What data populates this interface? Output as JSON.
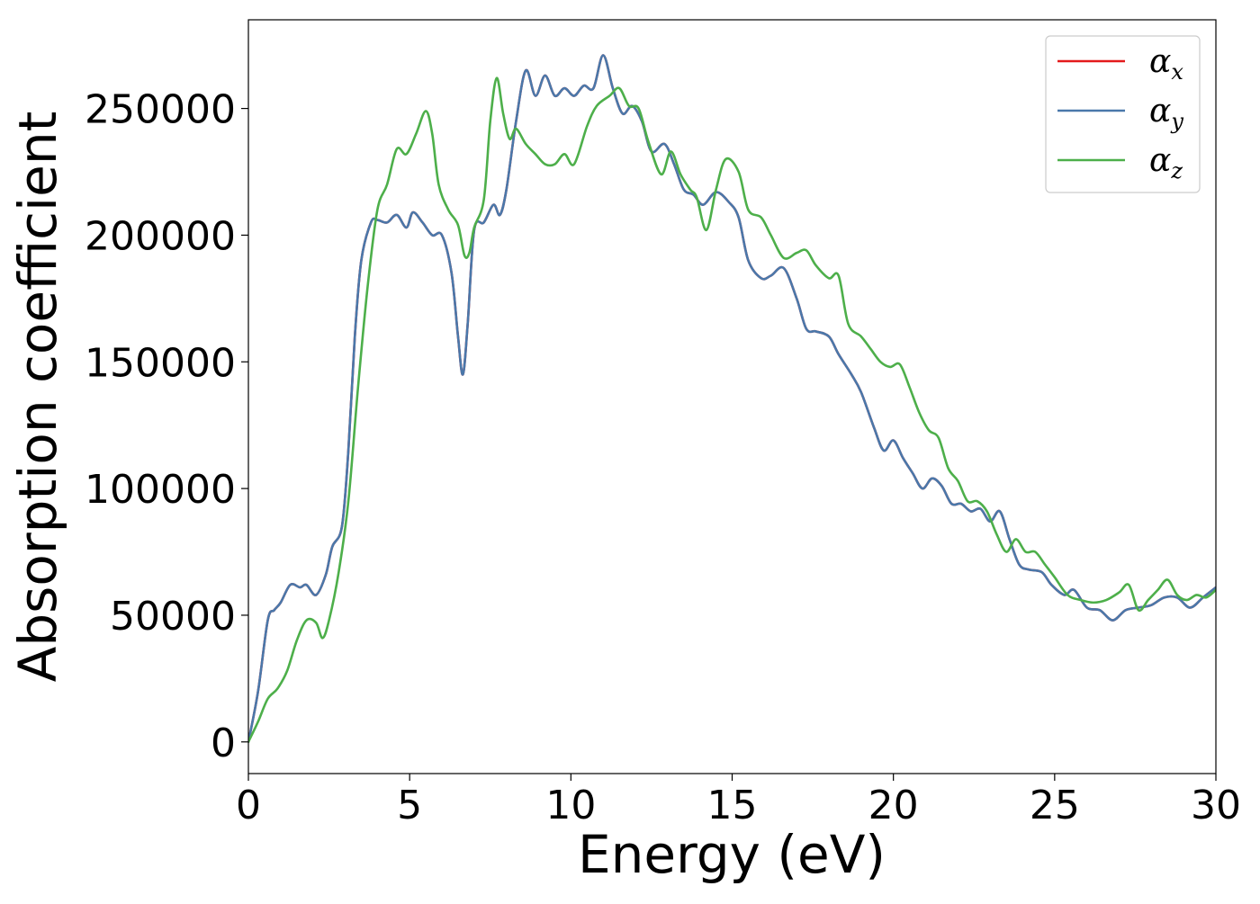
{
  "chart_data": {
    "type": "line",
    "xlabel": "Energy (eV)",
    "ylabel": "Absorption coefficient",
    "xlim": [
      0,
      30
    ],
    "ylim": [
      -12500,
      285000
    ],
    "x_ticks": [
      0,
      5,
      10,
      15,
      20,
      25,
      30
    ],
    "y_ticks": [
      0,
      50000,
      100000,
      150000,
      200000,
      250000
    ],
    "x_tick_labels": [
      "0",
      "5",
      "10",
      "15",
      "20",
      "25",
      "30"
    ],
    "y_tick_labels": [
      "0",
      "50000",
      "100000",
      "150000",
      "200000",
      "250000"
    ],
    "grid": false,
    "legend_position": "top-right",
    "series": [
      {
        "name": "α_x",
        "legend_main": "α",
        "legend_sub": "x",
        "color": "#e41a1c",
        "x": [
          0,
          0.3,
          0.6,
          0.8,
          1.0,
          1.3,
          1.6,
          1.8,
          2.1,
          2.4,
          2.6,
          2.9,
          3.1,
          3.3,
          3.5,
          3.8,
          4.0,
          4.3,
          4.6,
          4.9,
          5.1,
          5.4,
          5.7,
          6.0,
          6.3,
          6.5,
          6.65,
          6.8,
          7.0,
          7.3,
          7.6,
          7.8,
          8.0,
          8.3,
          8.6,
          8.9,
          9.2,
          9.5,
          9.8,
          10.1,
          10.4,
          10.7,
          11.0,
          11.3,
          11.6,
          11.9,
          12.2,
          12.5,
          12.9,
          13.2,
          13.5,
          13.8,
          14.1,
          14.5,
          14.9,
          15.2,
          15.5,
          15.9,
          16.2,
          16.6,
          17.0,
          17.3,
          17.6,
          18.0,
          18.3,
          18.7,
          19.0,
          19.4,
          19.7,
          20.0,
          20.3,
          20.6,
          20.9,
          21.2,
          21.5,
          21.8,
          22.1,
          22.4,
          22.7,
          23.0,
          23.3,
          23.6,
          23.9,
          24.2,
          24.6,
          24.9,
          25.3,
          25.6,
          26.0,
          26.4,
          26.8,
          27.2,
          27.6,
          28.0,
          28.4,
          28.8,
          29.2,
          29.6,
          30.0
        ],
        "y": [
          0,
          20000,
          48000,
          52000,
          55000,
          62000,
          61000,
          62000,
          58000,
          66000,
          77000,
          85000,
          115000,
          160000,
          190000,
          205000,
          206000,
          205000,
          208000,
          203000,
          209000,
          205000,
          200000,
          200000,
          185000,
          160000,
          145000,
          165000,
          202000,
          205000,
          212000,
          208000,
          218000,
          245000,
          265000,
          255000,
          263000,
          255000,
          258000,
          255000,
          259000,
          258000,
          271000,
          258000,
          248000,
          251000,
          245000,
          233000,
          236000,
          228000,
          218000,
          216000,
          212000,
          217000,
          213000,
          207000,
          190000,
          183000,
          184000,
          187000,
          175000,
          163000,
          162000,
          160000,
          153000,
          145000,
          138000,
          124000,
          115000,
          119000,
          112000,
          106000,
          100000,
          104000,
          101000,
          94000,
          94000,
          91000,
          92000,
          87000,
          91000,
          80000,
          70000,
          68000,
          67000,
          62000,
          58000,
          60000,
          53000,
          52000,
          48000,
          52000,
          53000,
          54000,
          57000,
          57000,
          53000,
          57000,
          61000
        ]
      },
      {
        "name": "α_y",
        "legend_main": "α",
        "legend_sub": "y",
        "color": "#4a78aa",
        "x": [
          0,
          0.3,
          0.6,
          0.8,
          1.0,
          1.3,
          1.6,
          1.8,
          2.1,
          2.4,
          2.6,
          2.9,
          3.1,
          3.3,
          3.5,
          3.8,
          4.0,
          4.3,
          4.6,
          4.9,
          5.1,
          5.4,
          5.7,
          6.0,
          6.3,
          6.5,
          6.65,
          6.8,
          7.0,
          7.3,
          7.6,
          7.8,
          8.0,
          8.3,
          8.6,
          8.9,
          9.2,
          9.5,
          9.8,
          10.1,
          10.4,
          10.7,
          11.0,
          11.3,
          11.6,
          11.9,
          12.2,
          12.5,
          12.9,
          13.2,
          13.5,
          13.8,
          14.1,
          14.5,
          14.9,
          15.2,
          15.5,
          15.9,
          16.2,
          16.6,
          17.0,
          17.3,
          17.6,
          18.0,
          18.3,
          18.7,
          19.0,
          19.4,
          19.7,
          20.0,
          20.3,
          20.6,
          20.9,
          21.2,
          21.5,
          21.8,
          22.1,
          22.4,
          22.7,
          23.0,
          23.3,
          23.6,
          23.9,
          24.2,
          24.6,
          24.9,
          25.3,
          25.6,
          26.0,
          26.4,
          26.8,
          27.2,
          27.6,
          28.0,
          28.4,
          28.8,
          29.2,
          29.6,
          30.0
        ],
        "y": [
          0,
          20000,
          48000,
          52000,
          55000,
          62000,
          61000,
          62000,
          58000,
          66000,
          77000,
          85000,
          115000,
          160000,
          190000,
          205000,
          206000,
          205000,
          208000,
          203000,
          209000,
          205000,
          200000,
          200000,
          185000,
          160000,
          145000,
          165000,
          202000,
          205000,
          212000,
          208000,
          218000,
          245000,
          265000,
          255000,
          263000,
          255000,
          258000,
          255000,
          259000,
          258000,
          271000,
          258000,
          248000,
          251000,
          245000,
          233000,
          236000,
          228000,
          218000,
          216000,
          212000,
          217000,
          213000,
          207000,
          190000,
          183000,
          184000,
          187000,
          175000,
          163000,
          162000,
          160000,
          153000,
          145000,
          138000,
          124000,
          115000,
          119000,
          112000,
          106000,
          100000,
          104000,
          101000,
          94000,
          94000,
          91000,
          92000,
          87000,
          91000,
          80000,
          70000,
          68000,
          67000,
          62000,
          58000,
          60000,
          53000,
          52000,
          48000,
          52000,
          53000,
          54000,
          57000,
          57000,
          53000,
          57000,
          61000
        ]
      },
      {
        "name": "α_z",
        "legend_main": "α",
        "legend_sub": "z",
        "color": "#4daf4a",
        "x": [
          0,
          0.3,
          0.6,
          0.9,
          1.2,
          1.5,
          1.8,
          2.1,
          2.3,
          2.5,
          2.8,
          3.1,
          3.4,
          3.7,
          4.0,
          4.3,
          4.6,
          4.9,
          5.2,
          5.5,
          5.7,
          5.9,
          6.2,
          6.5,
          6.7,
          6.85,
          7.0,
          7.3,
          7.5,
          7.7,
          7.9,
          8.1,
          8.3,
          8.6,
          8.9,
          9.2,
          9.5,
          9.8,
          10.1,
          10.5,
          10.8,
          11.2,
          11.5,
          11.8,
          12.1,
          12.4,
          12.8,
          13.1,
          13.4,
          13.7,
          13.9,
          14.2,
          14.5,
          14.8,
          15.2,
          15.5,
          15.9,
          16.2,
          16.6,
          17.0,
          17.3,
          17.6,
          18.0,
          18.3,
          18.6,
          19.0,
          19.3,
          19.6,
          19.9,
          20.2,
          20.5,
          20.8,
          21.1,
          21.4,
          21.7,
          22.0,
          22.3,
          22.6,
          22.9,
          23.2,
          23.5,
          23.8,
          24.1,
          24.4,
          24.7,
          25.0,
          25.4,
          25.8,
          26.2,
          26.6,
          27.0,
          27.3,
          27.6,
          27.9,
          28.2,
          28.5,
          28.8,
          29.1,
          29.4,
          29.7,
          30.0
        ],
        "y": [
          0,
          8000,
          17000,
          21000,
          28000,
          40000,
          48000,
          47000,
          41000,
          48000,
          67000,
          95000,
          140000,
          180000,
          210000,
          220000,
          234000,
          232000,
          240000,
          249000,
          240000,
          220000,
          210000,
          204000,
          192000,
          193000,
          203000,
          214000,
          245000,
          262000,
          248000,
          238000,
          242000,
          236000,
          232000,
          228000,
          228000,
          232000,
          228000,
          243000,
          251000,
          255000,
          258000,
          251000,
          250000,
          237000,
          224000,
          233000,
          224000,
          218000,
          215000,
          202000,
          218000,
          230000,
          225000,
          210000,
          207000,
          200000,
          191000,
          193000,
          194000,
          188000,
          183000,
          184000,
          165000,
          160000,
          155000,
          150000,
          148000,
          149000,
          140000,
          130000,
          123000,
          120000,
          108000,
          103000,
          95000,
          95000,
          91000,
          82000,
          75000,
          80000,
          75000,
          75000,
          70000,
          65000,
          58000,
          56000,
          55000,
          56000,
          59000,
          62000,
          52000,
          56000,
          60000,
          64000,
          58000,
          56000,
          58000,
          57000,
          60000
        ]
      }
    ]
  }
}
